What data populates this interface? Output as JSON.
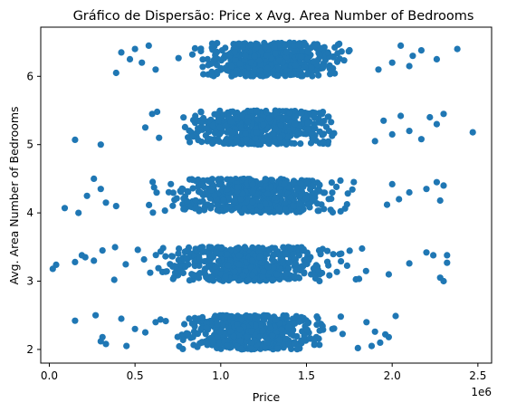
{
  "chart_data": {
    "type": "scatter",
    "title": "Gráfico de Dispersão: Price x Avg. Area Number of Bedrooms",
    "xlabel": "Price",
    "ylabel": "Avg. Area Number of Bedrooms",
    "x_offset_label": "1e6",
    "x_scale_factor": 1000000,
    "xlim": [
      -50000,
      2580000
    ],
    "ylim": [
      1.8,
      6.72
    ],
    "x_ticks": [
      0,
      500000,
      1000000,
      1500000,
      2000000,
      2500000
    ],
    "x_tick_labels": [
      "0.0",
      "0.5",
      "1.0",
      "1.5",
      "2.0",
      "2.5"
    ],
    "y_ticks": [
      2,
      3,
      4,
      5,
      6
    ],
    "y_tick_labels": [
      "2",
      "3",
      "4",
      "5",
      "6"
    ],
    "grid": false,
    "marker_color": "#1f77b4",
    "clusters": [
      {
        "bedrooms_range": [
          2.0,
          2.5
        ],
        "price_range": [
          150000,
          2030000
        ],
        "dense_price_range": [
          600000,
          1750000
        ]
      },
      {
        "bedrooms_range": [
          3.0,
          3.5
        ],
        "price_range": [
          20000,
          2320000
        ],
        "dense_price_range": [
          400000,
          1900000
        ]
      },
      {
        "bedrooms_range": [
          4.0,
          4.5
        ],
        "price_range": [
          90000,
          2300000
        ],
        "dense_price_range": [
          500000,
          1900000
        ]
      },
      {
        "bedrooms_range": [
          5.0,
          5.5
        ],
        "price_range": [
          150000,
          2470000
        ],
        "dense_price_range": [
          650000,
          1800000
        ]
      },
      {
        "bedrooms_range": [
          6.0,
          6.5
        ],
        "price_range": [
          390000,
          2380000
        ],
        "dense_price_range": [
          750000,
          1850000
        ]
      }
    ],
    "series": [
      {
        "points": [
          [
            150000,
            2.42
          ],
          [
            270000,
            2.5
          ],
          [
            310000,
            2.18
          ],
          [
            330000,
            2.08
          ],
          [
            300000,
            2.12
          ],
          [
            420000,
            2.45
          ],
          [
            450000,
            2.05
          ],
          [
            500000,
            2.3
          ],
          [
            560000,
            2.25
          ],
          [
            620000,
            2.4
          ],
          [
            1300000,
            2.2
          ],
          [
            1700000,
            2.48
          ],
          [
            1850000,
            2.4
          ],
          [
            1880000,
            2.05
          ],
          [
            1930000,
            2.1
          ],
          [
            1960000,
            2.22
          ],
          [
            2020000,
            2.49
          ],
          [
            1800000,
            2.02
          ],
          [
            1900000,
            2.26
          ],
          [
            1980000,
            2.18
          ],
          [
            20000,
            3.18
          ],
          [
            40000,
            3.24
          ],
          [
            150000,
            3.28
          ],
          [
            190000,
            3.38
          ],
          [
            210000,
            3.35
          ],
          [
            260000,
            3.3
          ],
          [
            310000,
            3.45
          ],
          [
            2100000,
            3.26
          ],
          [
            2200000,
            3.42
          ],
          [
            2240000,
            3.38
          ],
          [
            2280000,
            3.05
          ],
          [
            2300000,
            3.0
          ],
          [
            2320000,
            3.38
          ],
          [
            2320000,
            3.27
          ],
          [
            1980000,
            3.1
          ],
          [
            90000,
            4.07
          ],
          [
            170000,
            4.0
          ],
          [
            220000,
            4.25
          ],
          [
            260000,
            4.5
          ],
          [
            300000,
            4.35
          ],
          [
            330000,
            4.15
          ],
          [
            390000,
            4.1
          ],
          [
            2100000,
            4.3
          ],
          [
            2200000,
            4.35
          ],
          [
            2260000,
            4.45
          ],
          [
            2300000,
            4.4
          ],
          [
            2000000,
            4.42
          ],
          [
            1970000,
            4.12
          ],
          [
            2040000,
            4.2
          ],
          [
            2280000,
            4.18
          ],
          [
            150000,
            5.07
          ],
          [
            300000,
            5.0
          ],
          [
            560000,
            5.25
          ],
          [
            600000,
            5.45
          ],
          [
            640000,
            5.1
          ],
          [
            2000000,
            5.15
          ],
          [
            2100000,
            5.2
          ],
          [
            2170000,
            5.08
          ],
          [
            2220000,
            5.4
          ],
          [
            2260000,
            5.3
          ],
          [
            2300000,
            5.45
          ],
          [
            2470000,
            5.18
          ],
          [
            1950000,
            5.35
          ],
          [
            1900000,
            5.05
          ],
          [
            2050000,
            5.42
          ],
          [
            390000,
            6.05
          ],
          [
            420000,
            6.35
          ],
          [
            470000,
            6.25
          ],
          [
            500000,
            6.4
          ],
          [
            540000,
            6.2
          ],
          [
            580000,
            6.45
          ],
          [
            620000,
            6.1
          ],
          [
            2050000,
            6.45
          ],
          [
            2120000,
            6.3
          ],
          [
            2170000,
            6.38
          ],
          [
            2260000,
            6.25
          ],
          [
            2380000,
            6.4
          ],
          [
            1920000,
            6.1
          ],
          [
            2000000,
            6.2
          ],
          [
            2100000,
            6.15
          ]
        ]
      }
    ]
  }
}
